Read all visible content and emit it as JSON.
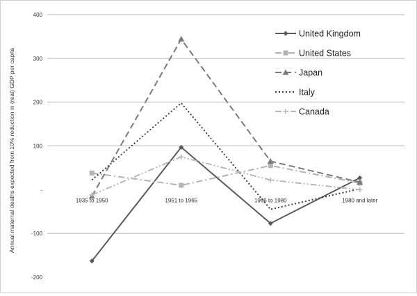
{
  "chart_data": {
    "type": "line",
    "title": "",
    "xlabel": "",
    "ylabel": "Annual maternal deaths expected from 10% reduction in (real) GDP per capita",
    "ylim": [
      -200,
      400
    ],
    "yticks": [
      {
        "value": -200,
        "label": "-200"
      },
      {
        "value": -100,
        "label": "-100"
      },
      {
        "value": 0,
        "label": "-"
      },
      {
        "value": 100,
        "label": "100"
      },
      {
        "value": 200,
        "label": "200"
      },
      {
        "value": 300,
        "label": "300"
      },
      {
        "value": 400,
        "label": "400"
      }
    ],
    "grid": true,
    "legend_position": "right",
    "categories": [
      "1935 to 1950",
      "1951 to 1965",
      "1966 to 1980",
      "1980 and later"
    ],
    "series": [
      {
        "name": "United Kingdom",
        "values": [
          -163,
          97,
          -77,
          27
        ],
        "color": "#5a5a5a",
        "dash": "solid",
        "marker": "diamond"
      },
      {
        "name": "United States",
        "values": [
          38,
          10,
          55,
          15
        ],
        "color": "#b3b3b3",
        "dash": "dashdot",
        "marker": "square"
      },
      {
        "name": "Japan",
        "values": [
          -15,
          344,
          65,
          17
        ],
        "color": "#7a7a7a",
        "dash": "dash",
        "marker": "triangle"
      },
      {
        "name": "Italy",
        "values": [
          22,
          198,
          -45,
          2
        ],
        "color": "#3c3c3c",
        "dash": "dot",
        "marker": "none"
      },
      {
        "name": "Canada",
        "values": [
          -12,
          75,
          22,
          0
        ],
        "color": "#b8b8b8",
        "dash": "dashdotdot",
        "marker": "plus"
      }
    ]
  }
}
